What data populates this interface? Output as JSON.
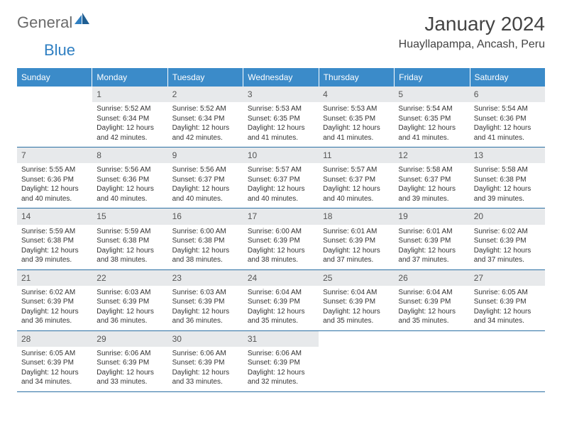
{
  "logo": {
    "part1": "General",
    "part2": "Blue"
  },
  "title": "January 2024",
  "location": "Huayllapampa, Ancash, Peru",
  "colors": {
    "header_bg": "#3b8bc9",
    "header_fg": "#ffffff",
    "daynum_bg": "#e7e9eb",
    "week_border": "#2a6fa3",
    "logo_gray": "#6b6b6b",
    "logo_blue": "#2f7fc2"
  },
  "day_labels": [
    "Sunday",
    "Monday",
    "Tuesday",
    "Wednesday",
    "Thursday",
    "Friday",
    "Saturday"
  ],
  "weeks": [
    [
      {
        "empty": true
      },
      {
        "n": "1",
        "sunrise": "5:52 AM",
        "sunset": "6:34 PM",
        "daylight": "12 hours and 42 minutes."
      },
      {
        "n": "2",
        "sunrise": "5:52 AM",
        "sunset": "6:34 PM",
        "daylight": "12 hours and 42 minutes."
      },
      {
        "n": "3",
        "sunrise": "5:53 AM",
        "sunset": "6:35 PM",
        "daylight": "12 hours and 41 minutes."
      },
      {
        "n": "4",
        "sunrise": "5:53 AM",
        "sunset": "6:35 PM",
        "daylight": "12 hours and 41 minutes."
      },
      {
        "n": "5",
        "sunrise": "5:54 AM",
        "sunset": "6:35 PM",
        "daylight": "12 hours and 41 minutes."
      },
      {
        "n": "6",
        "sunrise": "5:54 AM",
        "sunset": "6:36 PM",
        "daylight": "12 hours and 41 minutes."
      }
    ],
    [
      {
        "n": "7",
        "sunrise": "5:55 AM",
        "sunset": "6:36 PM",
        "daylight": "12 hours and 40 minutes."
      },
      {
        "n": "8",
        "sunrise": "5:56 AM",
        "sunset": "6:36 PM",
        "daylight": "12 hours and 40 minutes."
      },
      {
        "n": "9",
        "sunrise": "5:56 AM",
        "sunset": "6:37 PM",
        "daylight": "12 hours and 40 minutes."
      },
      {
        "n": "10",
        "sunrise": "5:57 AM",
        "sunset": "6:37 PM",
        "daylight": "12 hours and 40 minutes."
      },
      {
        "n": "11",
        "sunrise": "5:57 AM",
        "sunset": "6:37 PM",
        "daylight": "12 hours and 40 minutes."
      },
      {
        "n": "12",
        "sunrise": "5:58 AM",
        "sunset": "6:37 PM",
        "daylight": "12 hours and 39 minutes."
      },
      {
        "n": "13",
        "sunrise": "5:58 AM",
        "sunset": "6:38 PM",
        "daylight": "12 hours and 39 minutes."
      }
    ],
    [
      {
        "n": "14",
        "sunrise": "5:59 AM",
        "sunset": "6:38 PM",
        "daylight": "12 hours and 39 minutes."
      },
      {
        "n": "15",
        "sunrise": "5:59 AM",
        "sunset": "6:38 PM",
        "daylight": "12 hours and 38 minutes."
      },
      {
        "n": "16",
        "sunrise": "6:00 AM",
        "sunset": "6:38 PM",
        "daylight": "12 hours and 38 minutes."
      },
      {
        "n": "17",
        "sunrise": "6:00 AM",
        "sunset": "6:39 PM",
        "daylight": "12 hours and 38 minutes."
      },
      {
        "n": "18",
        "sunrise": "6:01 AM",
        "sunset": "6:39 PM",
        "daylight": "12 hours and 37 minutes."
      },
      {
        "n": "19",
        "sunrise": "6:01 AM",
        "sunset": "6:39 PM",
        "daylight": "12 hours and 37 minutes."
      },
      {
        "n": "20",
        "sunrise": "6:02 AM",
        "sunset": "6:39 PM",
        "daylight": "12 hours and 37 minutes."
      }
    ],
    [
      {
        "n": "21",
        "sunrise": "6:02 AM",
        "sunset": "6:39 PM",
        "daylight": "12 hours and 36 minutes."
      },
      {
        "n": "22",
        "sunrise": "6:03 AM",
        "sunset": "6:39 PM",
        "daylight": "12 hours and 36 minutes."
      },
      {
        "n": "23",
        "sunrise": "6:03 AM",
        "sunset": "6:39 PM",
        "daylight": "12 hours and 36 minutes."
      },
      {
        "n": "24",
        "sunrise": "6:04 AM",
        "sunset": "6:39 PM",
        "daylight": "12 hours and 35 minutes."
      },
      {
        "n": "25",
        "sunrise": "6:04 AM",
        "sunset": "6:39 PM",
        "daylight": "12 hours and 35 minutes."
      },
      {
        "n": "26",
        "sunrise": "6:04 AM",
        "sunset": "6:39 PM",
        "daylight": "12 hours and 35 minutes."
      },
      {
        "n": "27",
        "sunrise": "6:05 AM",
        "sunset": "6:39 PM",
        "daylight": "12 hours and 34 minutes."
      }
    ],
    [
      {
        "n": "28",
        "sunrise": "6:05 AM",
        "sunset": "6:39 PM",
        "daylight": "12 hours and 34 minutes."
      },
      {
        "n": "29",
        "sunrise": "6:06 AM",
        "sunset": "6:39 PM",
        "daylight": "12 hours and 33 minutes."
      },
      {
        "n": "30",
        "sunrise": "6:06 AM",
        "sunset": "6:39 PM",
        "daylight": "12 hours and 33 minutes."
      },
      {
        "n": "31",
        "sunrise": "6:06 AM",
        "sunset": "6:39 PM",
        "daylight": "12 hours and 32 minutes."
      },
      {
        "empty": true
      },
      {
        "empty": true
      },
      {
        "empty": true
      }
    ]
  ],
  "labels": {
    "sunrise": "Sunrise: ",
    "sunset": "Sunset: ",
    "daylight": "Daylight: "
  }
}
